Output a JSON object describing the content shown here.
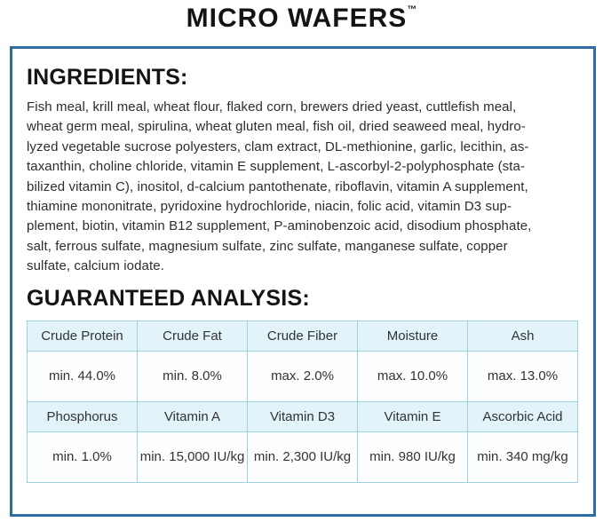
{
  "page": {
    "title": "MICRO WAFERS",
    "trademark": "™"
  },
  "ingredients": {
    "heading": "INGREDIENTS:",
    "lines": [
      "Fish meal, krill meal, wheat flour, flaked corn, brewers dried yeast, cuttlefish meal,",
      "wheat germ meal, spirulina, wheat gluten meal, fish oil, dried seaweed meal, hydro-",
      "lyzed vegetable sucrose polyesters, clam extract, DL-methionine, garlic, lecithin, as-",
      "taxanthin, choline chloride, vitamin E supplement, L-ascorbyl-2-polyphosphate (sta-",
      "bilized vitamin C), inositol, d-calcium pantothenate, riboflavin, vitamin A supplement,",
      "thiamine mononitrate, pyridoxine hydrochloride, niacin, folic acid, vitamin D3 sup-",
      "plement, biotin, vitamin B12 supplement, P-aminobenzoic acid, disodium phosphate,",
      "salt, ferrous sulfate, magnesium sulfate, zinc sulfate, manganese sulfate, copper",
      "sulfate, calcium iodate."
    ]
  },
  "analysis": {
    "heading": "GUARANTEED ANALYSIS:",
    "table": {
      "rows": [
        {
          "type": "header",
          "cells": [
            "Crude Protein",
            "Crude Fat",
            "Crude Fiber",
            "Moisture",
            "Ash"
          ]
        },
        {
          "type": "value",
          "cells": [
            "min. 44.0%",
            "min. 8.0%",
            "max. 2.0%",
            "max. 10.0%",
            "max. 13.0%"
          ]
        },
        {
          "type": "header",
          "cells": [
            "Phosphorus",
            "Vitamin A",
            "Vitamin D3",
            "Vitamin E",
            "Ascorbic Acid"
          ]
        },
        {
          "type": "value",
          "cells": [
            "min. 1.0%",
            "min. 15,000 IU/kg",
            "min. 2,300 IU/kg",
            "min. 980 IU/kg",
            "min. 340 mg/kg"
          ]
        }
      ]
    }
  },
  "colors": {
    "outer_border": "#2e6da4",
    "table_border": "#9cd2e2",
    "table_header_bg": "#e2f3f9",
    "heading_text": "#141414",
    "body_text": "#2d2d2d"
  }
}
